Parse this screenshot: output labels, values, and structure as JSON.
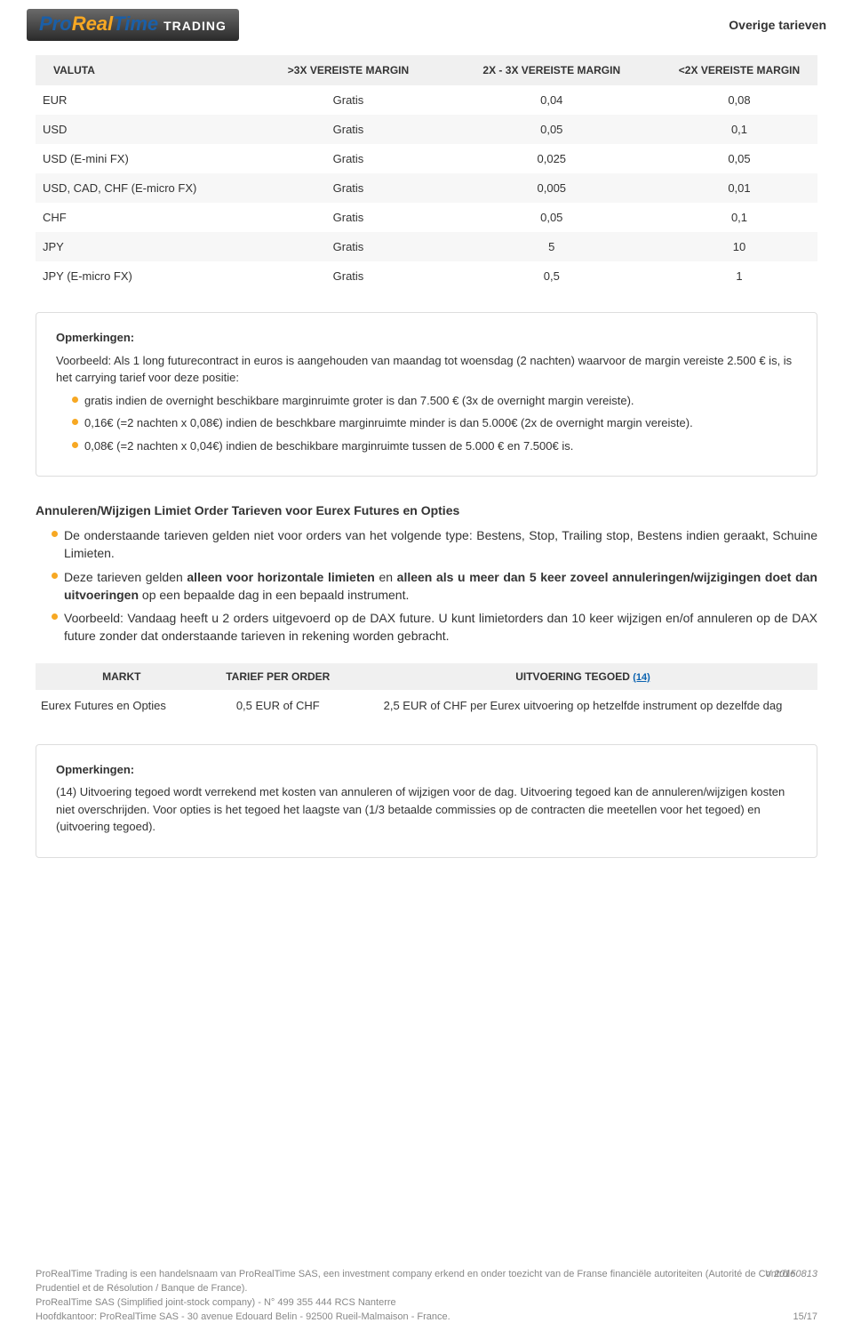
{
  "header": {
    "logo": {
      "pro": "Pro",
      "real": "Real",
      "time": "Time",
      "trading": "TRADING"
    },
    "page_title": "Overige tarieven"
  },
  "rates_table": {
    "columns": [
      "VALUTA",
      ">3X VEREISTE MARGIN",
      "2X - 3X VEREISTE MARGIN",
      "<2X VEREISTE MARGIN"
    ],
    "col_widths": [
      "28%",
      "24%",
      "28%",
      "20%"
    ],
    "rows": [
      [
        "EUR",
        "Gratis",
        "0,04",
        "0,08"
      ],
      [
        "USD",
        "Gratis",
        "0,05",
        "0,1"
      ],
      [
        "USD (E-mini FX)",
        "Gratis",
        "0,025",
        "0,05"
      ],
      [
        "USD, CAD, CHF (E-micro FX)",
        "Gratis",
        "0,005",
        "0,01"
      ],
      [
        "CHF",
        "Gratis",
        "0,05",
        "0,1"
      ],
      [
        "JPY",
        "Gratis",
        "5",
        "10"
      ],
      [
        "JPY (E-micro FX)",
        "Gratis",
        "0,5",
        "1"
      ]
    ]
  },
  "remarks1": {
    "title": "Opmerkingen:",
    "intro": "Voorbeeld: Als 1 long futurecontract in euros is aangehouden van maandag tot woensdag (2 nachten) waarvoor de margin vereiste 2.500 € is, is het carrying tarief voor deze positie:",
    "bullets": [
      "gratis indien de overnight beschikbare marginruimte groter is dan 7.500 € (3x de overnight margin vereiste).",
      "0,16€ (=2 nachten x 0,08€) indien de beschkbare marginruimte minder is dan 5.000€ (2x de overnight margin vereiste).",
      "0,08€ (=2 nachten x 0,04€) indien de beschikbare marginruimte tussen de 5.000 € en 7.500€ is."
    ]
  },
  "section": {
    "heading": "Annuleren/Wijzigen Limiet Order Tarieven voor Eurex Futures en Opties",
    "bullets": [
      {
        "plain": "De onderstaande tarieven gelden niet voor orders van het volgende type: Bestens, Stop, Trailing stop, Bestens indien geraakt, Schuine Limieten."
      },
      {
        "parts": [
          {
            "t": "Deze tarieven gelden "
          },
          {
            "t": "alleen voor horizontale limieten",
            "b": true
          },
          {
            "t": " en "
          },
          {
            "t": "alleen als u meer dan 5 keer zoveel annuleringen/wijzigingen doet dan uitvoeringen",
            "b": true
          },
          {
            "t": " op een bepaalde dag in een bepaald instrument."
          }
        ]
      },
      {
        "plain": "Voorbeeld: Vandaag heeft u 2 orders uitgevoerd op de DAX future. U kunt limietorders dan 10 keer wijzigen en/of annuleren op de DAX future zonder dat onderstaande tarieven in rekening worden gebracht."
      }
    ]
  },
  "tarief_table": {
    "columns": [
      "MARKT",
      "TARIEF PER ORDER",
      "UITVOERING TEGOED"
    ],
    "footnote_ref": "(14)",
    "col_widths": [
      "22%",
      "18%",
      "60%"
    ],
    "rows": [
      [
        "Eurex Futures en Opties",
        "0,5 EUR of CHF",
        "2,5 EUR of CHF per Eurex uitvoering op hetzelfde instrument op dezelfde dag"
      ]
    ]
  },
  "remarks2": {
    "title": "Opmerkingen:",
    "body": "(14) Uitvoering tegoed wordt verrekend met kosten van annuleren of wijzigen voor de dag. Uitvoering tegoed kan de annuleren/wijzigen kosten niet overschrijden. Voor opties is het tegoed het laagste van (1/3 betaalde commissies op de contracten die meetellen voor het tegoed) en (uitvoering tegoed)."
  },
  "footer": {
    "lines": [
      "ProRealTime Trading is een handelsnaam van ProRealTime SAS, een investment company erkend en onder toezicht van de Franse financiële autoriteiten (Autorité de Contrôle Prudentiel et de Résolution / Banque de France).",
      "ProRealTime SAS (Simplified joint-stock company) - N° 499 355 444 RCS Nanterre",
      "Hoofdkantoor: ProRealTime SAS - 30 avenue Edouard Belin - 92500 Rueil-Malmaison - France."
    ],
    "version": "V 20150813",
    "page": "15/17"
  },
  "colors": {
    "header_bg": "#f0f0f0",
    "row_alt": "#f7f7f7",
    "bullet": "#f7a823",
    "link": "#0b63b0",
    "footer_text": "#888888"
  }
}
